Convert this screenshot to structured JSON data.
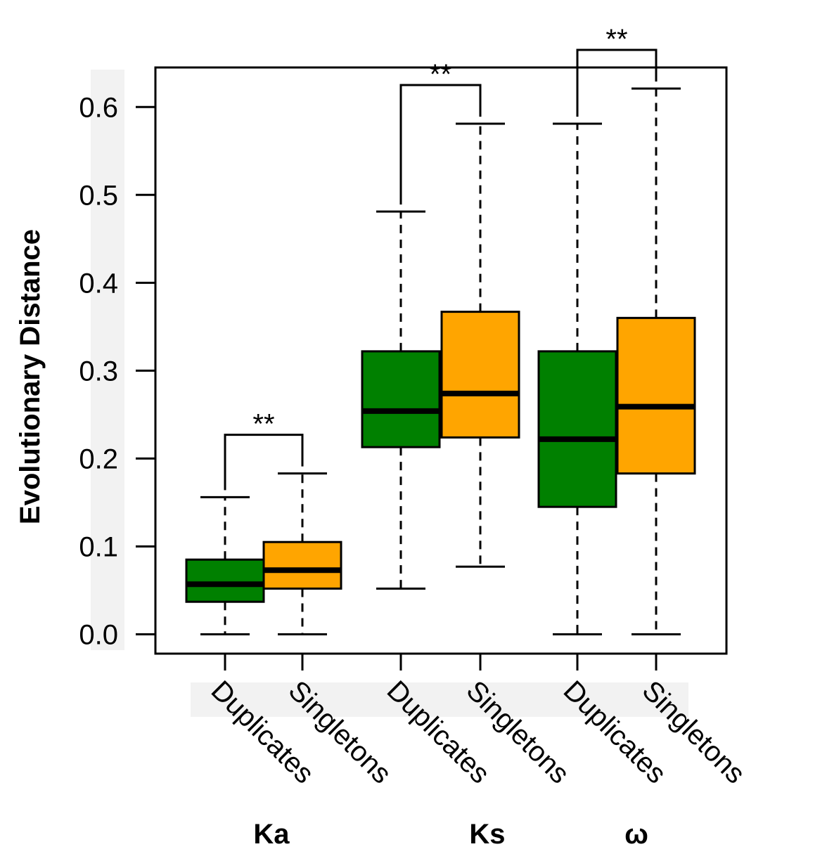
{
  "chart_data": {
    "type": "boxplot",
    "title": "",
    "ylabel": "Evolutionary Distance",
    "ylim": [
      -0.022,
      0.645
    ],
    "yticks": [
      0.0,
      0.1,
      0.2,
      0.3,
      0.4,
      0.5,
      0.6
    ],
    "ytick_labels": [
      "0.0",
      "0.1",
      "0.2",
      "0.3",
      "0.4",
      "0.5",
      "0.6"
    ],
    "colors": {
      "Duplicates": "#008000",
      "Singletons": "#FFA500"
    },
    "groups": [
      {
        "label": "Ka",
        "significance": "**",
        "boxes": [
          {
            "category": "Duplicates",
            "whisker_low": 0.0,
            "q1": 0.037,
            "median": 0.057,
            "q3": 0.085,
            "whisker_high": 0.156
          },
          {
            "category": "Singletons",
            "whisker_low": 0.0,
            "q1": 0.052,
            "median": 0.073,
            "q3": 0.105,
            "whisker_high": 0.183
          }
        ]
      },
      {
        "label": "Ks",
        "significance": "**",
        "boxes": [
          {
            "category": "Duplicates",
            "whisker_low": 0.052,
            "q1": 0.213,
            "median": 0.254,
            "q3": 0.322,
            "whisker_high": 0.481
          },
          {
            "category": "Singletons",
            "whisker_low": 0.077,
            "q1": 0.224,
            "median": 0.274,
            "q3": 0.367,
            "whisker_high": 0.581
          }
        ]
      },
      {
        "label": "ω",
        "significance": "**",
        "boxes": [
          {
            "category": "Duplicates",
            "whisker_low": 0.0,
            "q1": 0.145,
            "median": 0.222,
            "q3": 0.322,
            "whisker_high": 0.581
          },
          {
            "category": "Singletons",
            "whisker_low": 0.0,
            "q1": 0.183,
            "median": 0.259,
            "q3": 0.36,
            "whisker_high": 0.621
          }
        ]
      }
    ]
  }
}
